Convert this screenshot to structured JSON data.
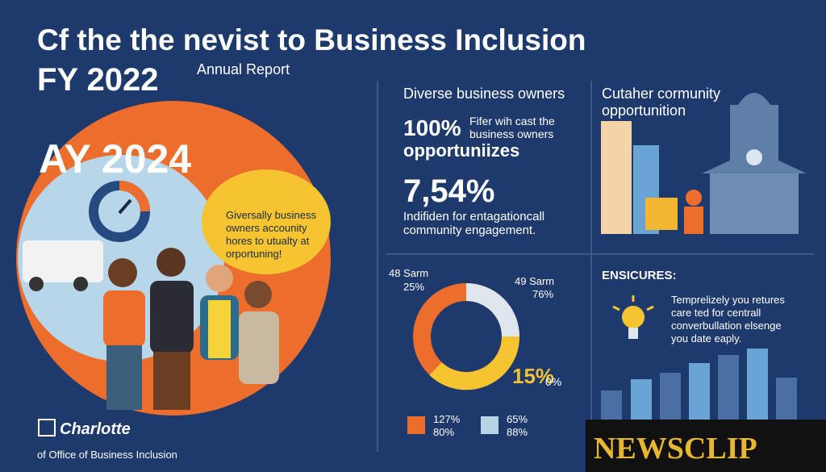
{
  "header": {
    "title": "Cf the the nevist to Business Inclusion",
    "year": "FY 2022",
    "subtitle": "Annual Report"
  },
  "hero": {
    "year": "AY 2024",
    "bubble": [
      "Giversally business",
      "owners accounity",
      "hores to utualty at",
      "orportuning!"
    ]
  },
  "panel_owners": {
    "heading": "Diverse business owners",
    "stat1": "100%",
    "stat1_note": [
      "Fifer wih cast the",
      "business owners"
    ],
    "stat1_label": "opportuniizes",
    "stat2": "7,54%",
    "stat2_note": [
      "Indifiden for entagationcall",
      "community engagement."
    ]
  },
  "panel_community": {
    "heading": [
      "Cutaher cormunity",
      "opportunition"
    ]
  },
  "panel_donut": {
    "left_label": [
      "48 Sarm",
      "25%"
    ],
    "right_label": [
      "49 Sarm",
      "76%"
    ],
    "center_value": "15%",
    "center_sub": "0%",
    "legend": [
      [
        "127%",
        "80%"
      ],
      [
        "65%",
        "88%"
      ]
    ]
  },
  "panel_ensicures": {
    "heading": "ENSICURES:",
    "text": [
      "Temprelizely you retures",
      "care ted for centrall",
      "converbullation elsenge",
      "you date eaply."
    ]
  },
  "footer": {
    "logo": "Charlotte",
    "org": "of Office of Business Inclusion"
  },
  "watermark": "NEWSCLIP"
}
